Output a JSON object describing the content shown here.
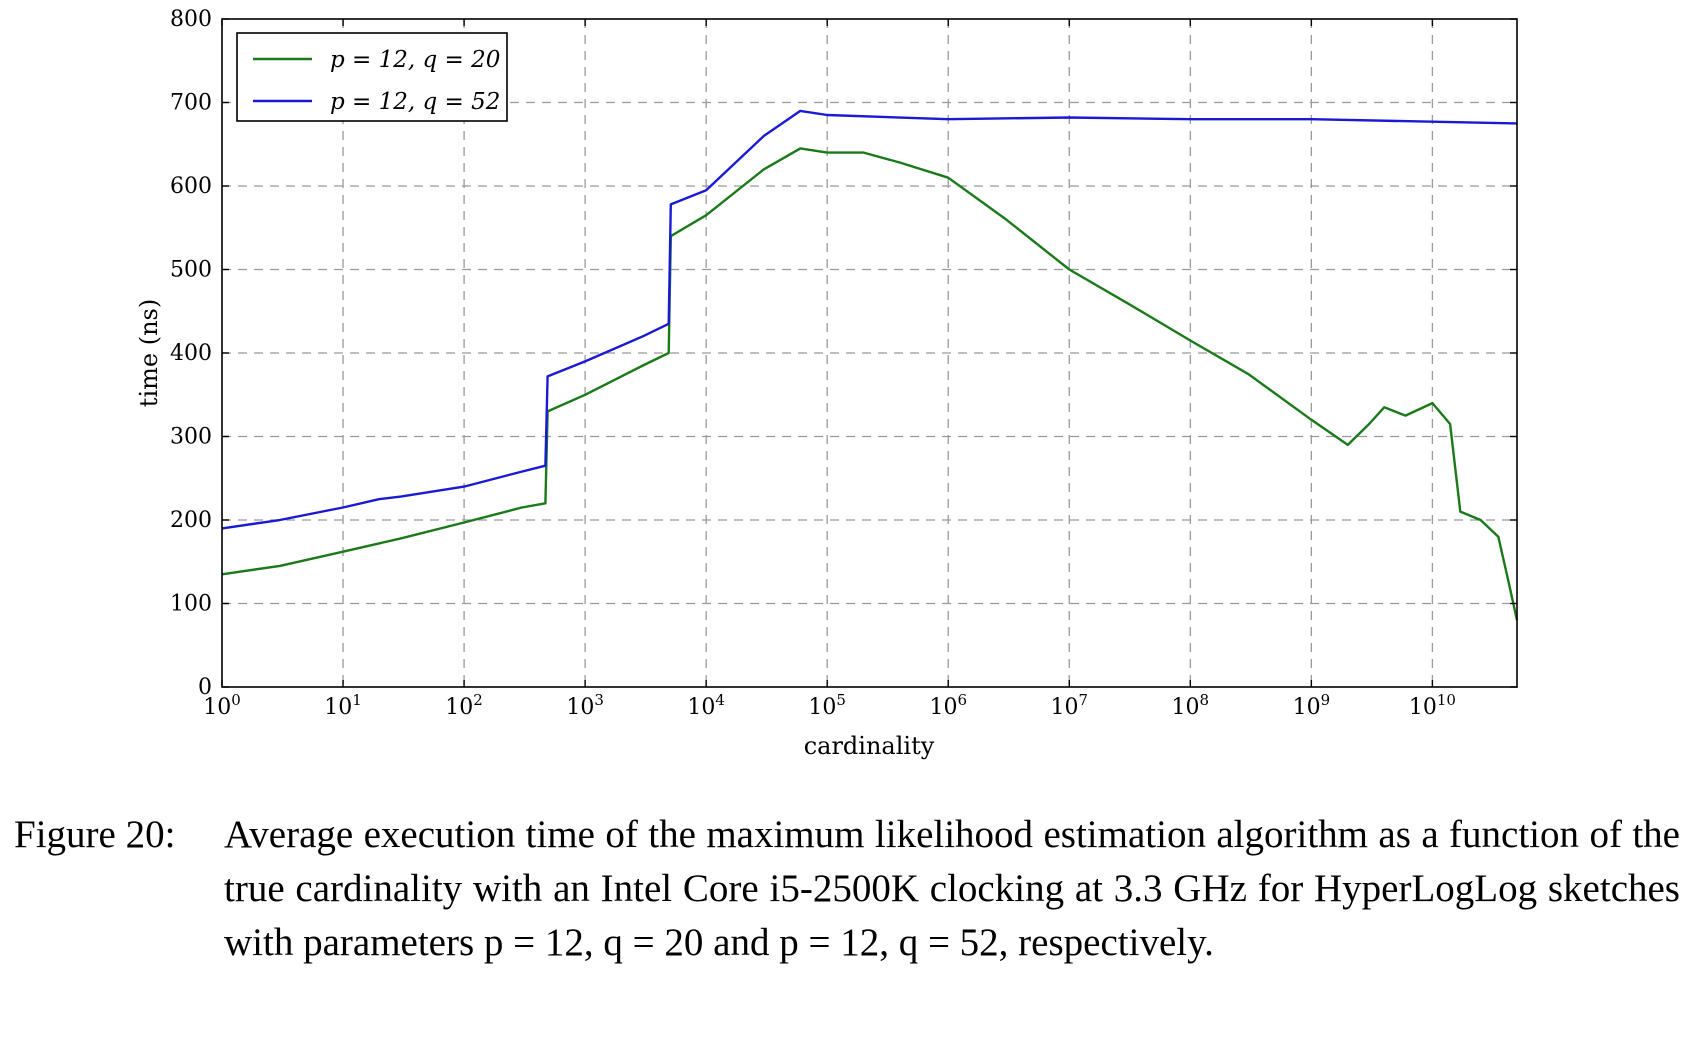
{
  "chart_data": {
    "type": "line",
    "xlabel": "cardinality",
    "ylabel": "time (ns)",
    "xscale": "log",
    "xlim": [
      1,
      50000000000
    ],
    "ylim": [
      0,
      800
    ],
    "grid": true,
    "legend_position": "top-left",
    "x_ticks": [
      {
        "value": 1,
        "base": "10",
        "exp": "0"
      },
      {
        "value": 10,
        "base": "10",
        "exp": "1"
      },
      {
        "value": 100,
        "base": "10",
        "exp": "2"
      },
      {
        "value": 1000,
        "base": "10",
        "exp": "3"
      },
      {
        "value": 10000,
        "base": "10",
        "exp": "4"
      },
      {
        "value": 100000,
        "base": "10",
        "exp": "5"
      },
      {
        "value": 1000000,
        "base": "10",
        "exp": "6"
      },
      {
        "value": 10000000,
        "base": "10",
        "exp": "7"
      },
      {
        "value": 100000000,
        "base": "10",
        "exp": "8"
      },
      {
        "value": 1000000000,
        "base": "10",
        "exp": "9"
      },
      {
        "value": 10000000000,
        "base": "10",
        "exp": "10"
      }
    ],
    "y_ticks": [
      0,
      100,
      200,
      300,
      400,
      500,
      600,
      700,
      800
    ],
    "series": [
      {
        "name": "p = 12, q = 20",
        "color": "#1a7a1a",
        "points": [
          [
            1,
            135
          ],
          [
            3,
            145
          ],
          [
            10,
            162
          ],
          [
            30,
            178
          ],
          [
            100,
            197
          ],
          [
            300,
            215
          ],
          [
            470,
            220
          ],
          [
            490,
            330
          ],
          [
            1000,
            350
          ],
          [
            3000,
            385
          ],
          [
            4900,
            400
          ],
          [
            5100,
            540
          ],
          [
            10000,
            565
          ],
          [
            30000,
            620
          ],
          [
            60000,
            645
          ],
          [
            100000,
            640
          ],
          [
            200000,
            640
          ],
          [
            400000,
            628
          ],
          [
            1000000,
            610
          ],
          [
            3000000,
            560
          ],
          [
            10000000,
            500
          ],
          [
            30000000,
            460
          ],
          [
            100000000,
            415
          ],
          [
            300000000,
            375
          ],
          [
            1000000000,
            320
          ],
          [
            2000000000,
            290
          ],
          [
            3000000000,
            315
          ],
          [
            4000000000,
            335
          ],
          [
            6000000000,
            325
          ],
          [
            10000000000,
            340
          ],
          [
            14000000000,
            315
          ],
          [
            17000000000,
            210
          ],
          [
            25000000000,
            200
          ],
          [
            35000000000,
            180
          ],
          [
            42000000000,
            130
          ],
          [
            50000000000,
            80
          ]
        ]
      },
      {
        "name": "p = 12, q = 52",
        "color": "#1a1ad4",
        "points": [
          [
            1,
            190
          ],
          [
            3,
            200
          ],
          [
            10,
            215
          ],
          [
            20,
            225
          ],
          [
            30,
            228
          ],
          [
            100,
            240
          ],
          [
            300,
            258
          ],
          [
            470,
            265
          ],
          [
            490,
            372
          ],
          [
            1000,
            390
          ],
          [
            3000,
            420
          ],
          [
            4900,
            435
          ],
          [
            5100,
            578
          ],
          [
            10000,
            595
          ],
          [
            30000,
            660
          ],
          [
            60000,
            690
          ],
          [
            100000,
            685
          ],
          [
            1000000,
            680
          ],
          [
            10000000,
            682
          ],
          [
            100000000,
            680
          ],
          [
            1000000000,
            680
          ],
          [
            10000000000,
            677
          ],
          [
            50000000000,
            675
          ]
        ]
      }
    ]
  },
  "caption": {
    "label": "Figure 20:",
    "text": "Average execution time of the maximum likelihood estimation algorithm as a function of the true cardinality with an Intel Core i5-2500K clocking at 3.3 GHz for HyperLogLog sketches with parameters p = 12, q = 20 and p = 12, q = 52, respectively."
  }
}
